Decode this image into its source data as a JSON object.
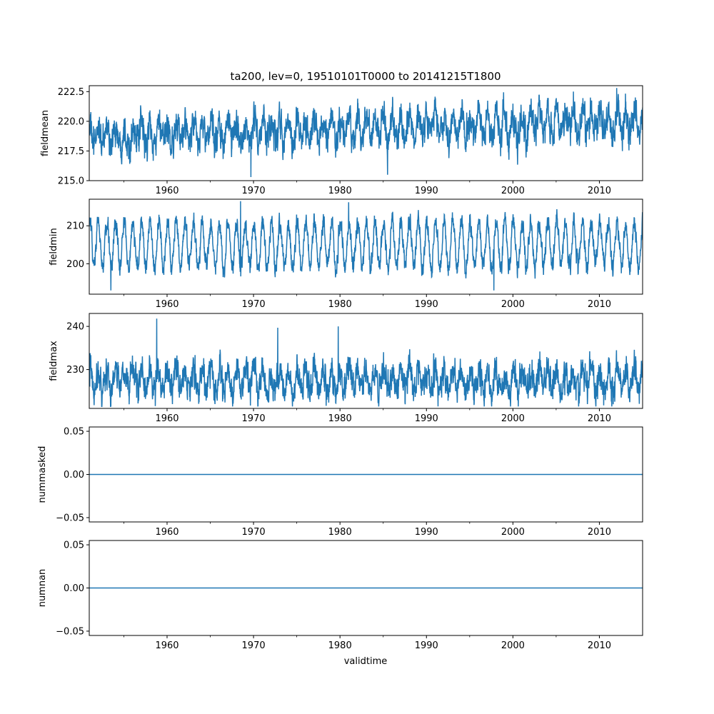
{
  "chart_data": {
    "type": "line",
    "title": "ta200, lev=0, 19510101T0000 to 20141215T1800",
    "xlabel": "validtime",
    "xlim": [
      1951.0,
      2015.0
    ],
    "x_major_ticks": [
      1960,
      1970,
      1980,
      1990,
      2000,
      2010
    ],
    "x_minor_ticks": [
      1955,
      1965,
      1975,
      1985,
      1995,
      2005
    ],
    "line_color": "#1f77b4",
    "panels": [
      {
        "ylabel": "fieldmean",
        "ylim": [
          215.0,
          223.0
        ],
        "yticks": [
          "215.0",
          "217.5",
          "220.0",
          "222.5"
        ],
        "ytick_values": [
          215.0,
          217.5,
          220.0,
          222.5
        ],
        "signal": {
          "base": 218.7,
          "trend_per_year": 0.022,
          "seasonal_amp": 0.9,
          "noise": 0.85,
          "extremes": [
            [
              1969.7,
              215.3
            ],
            [
              1985.5,
              215.5
            ],
            [
              2012.0,
              222.8
            ],
            [
              2007.0,
              222.5
            ]
          ]
        }
      },
      {
        "ylabel": "fieldmin",
        "ylim": [
          192.0,
          217.0
        ],
        "yticks": [
          "200",
          "210"
        ],
        "ytick_values": [
          200,
          210
        ],
        "signal": {
          "base": 205.0,
          "trend_per_year": 0.0,
          "seasonal_amp": 6.0,
          "noise": 1.6,
          "extremes": [
            [
              1953.5,
              193.0
            ],
            [
              1997.8,
              193.0
            ],
            [
              1968.5,
              216.5
            ],
            [
              1981.0,
              216.2
            ]
          ]
        }
      },
      {
        "ylabel": "fieldmax",
        "ylim": [
          221.0,
          243.0
        ],
        "yticks": [
          "230",
          "240"
        ],
        "ytick_values": [
          230,
          240
        ],
        "signal": {
          "base": 227.5,
          "trend_per_year": 0.0,
          "seasonal_amp": 2.5,
          "noise": 2.2,
          "extremes": [
            [
              1958.8,
              241.8
            ],
            [
              1972.8,
              239.7
            ],
            [
              1979.8,
              240.0
            ],
            [
              1995.5,
              221.8
            ]
          ]
        }
      },
      {
        "ylabel": "nummasked",
        "ylim": [
          -0.055,
          0.055
        ],
        "yticks": [
          "−0.05",
          "0.00",
          "0.05"
        ],
        "ytick_values": [
          -0.05,
          0.0,
          0.05
        ],
        "constant": 0.0
      },
      {
        "ylabel": "numnan",
        "ylim": [
          -0.055,
          0.055
        ],
        "yticks": [
          "−0.05",
          "0.00",
          "0.05"
        ],
        "ytick_values": [
          -0.05,
          0.0,
          0.05
        ],
        "constant": 0.0
      }
    ],
    "xtick_labels": [
      "1960",
      "1970",
      "1980",
      "1990",
      "2000",
      "2010"
    ]
  }
}
